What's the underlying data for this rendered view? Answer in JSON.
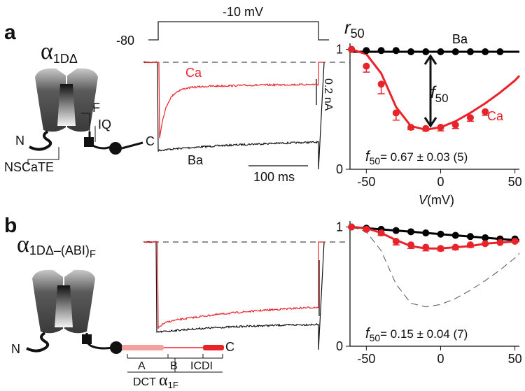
{
  "panel_a": {
    "label": "a",
    "protocol": {
      "step": "-10 mV",
      "hold": "-80"
    },
    "channel": {
      "symbol": "α",
      "subscript": "1DΔ"
    },
    "diagram": {
      "ef": "EF",
      "iq": "IQ",
      "n": "N",
      "c": "C",
      "nscate": "NSCaTE"
    },
    "traces": {
      "ca": "Ca",
      "ba": "Ba",
      "current_scale": "0.2 nA",
      "time_scale": "100 ms"
    }
  },
  "panel_b": {
    "label": "b",
    "channel": {
      "symbol": "α",
      "subscript": "1DΔ–(ABI)",
      "sub_subscript": "F"
    },
    "diagram": {
      "n": "N",
      "c": "C",
      "a": "A",
      "b": "B",
      "icdi": "ICDI",
      "dct": "DCT",
      "dct_symbol": "α",
      "dct_subscript": "1F"
    }
  },
  "chart_data": [
    {
      "type": "scatter",
      "y_label": {
        "symbol": "r",
        "subscript": "50"
      },
      "x_label": {
        "symbol": "V",
        "unit": "(mV)"
      },
      "annotation": {
        "symbol": "f",
        "subscript": "50"
      },
      "stat": {
        "symbol": "f",
        "subscript": "50",
        "text": "= 0.67 ± 0.03 (5)"
      },
      "xlim": [
        -61,
        53
      ],
      "xticks": [
        -50,
        0,
        50
      ],
      "ylim": [
        0,
        1.05
      ],
      "yticks": [
        0,
        1
      ],
      "x": [
        -60,
        -50,
        -40,
        -30,
        -20,
        -10,
        0,
        10,
        20,
        30,
        40
      ],
      "series": [
        {
          "name": "Ba",
          "color": "#000000",
          "values": [
            1.0,
            0.99,
            0.99,
            0.99,
            0.98,
            0.98,
            0.98,
            0.98,
            0.98,
            0.98,
            0.98
          ]
        },
        {
          "name": "Ca",
          "color": "#e8232a",
          "values": [
            1.0,
            0.86,
            0.71,
            0.47,
            0.35,
            0.34,
            0.35,
            0.37,
            0.43,
            0.48,
            null
          ],
          "errors": [
            0,
            0.05,
            0.08,
            0.06,
            0.02,
            0.02,
            0.03,
            0.03,
            0.03,
            0.03,
            null
          ]
        }
      ],
      "fit_x": [
        -60,
        -50,
        -40,
        -30,
        -20,
        -10,
        0,
        10,
        20,
        30,
        40,
        50,
        53
      ],
      "fits": [
        {
          "color": "#000000",
          "values": [
            0.98,
            0.98,
            0.98,
            0.98,
            0.98,
            0.98,
            0.98,
            0.98,
            0.98,
            0.98,
            0.98,
            0.98,
            0.98
          ]
        },
        {
          "color": "#e8232a",
          "values": [
            1.0,
            0.96,
            0.8,
            0.52,
            0.36,
            0.33,
            0.35,
            0.4,
            0.47,
            0.55,
            0.64,
            0.74,
            0.78
          ]
        }
      ]
    },
    {
      "type": "scatter",
      "stat": {
        "symbol": "f",
        "subscript": "50",
        "text": "= 0.15 ± 0.04 (7)"
      },
      "xlim": [
        -61,
        53
      ],
      "xticks": [
        -50,
        0,
        50
      ],
      "ylim": [
        0,
        1.05
      ],
      "yticks": [
        0,
        1
      ],
      "x": [
        -60,
        -50,
        -40,
        -30,
        -20,
        -10,
        0,
        10,
        20,
        30,
        40,
        50
      ],
      "series": [
        {
          "color": "#000000",
          "values": [
            1.0,
            0.99,
            0.98,
            0.97,
            0.96,
            0.95,
            0.94,
            0.93,
            0.92,
            0.91,
            0.9,
            0.9
          ]
        },
        {
          "color": "#e8232a",
          "values": [
            1.0,
            0.98,
            0.95,
            0.88,
            0.85,
            0.83,
            0.82,
            0.83,
            0.85,
            0.86,
            0.87,
            0.88
          ],
          "errors": [
            0,
            0,
            0.02,
            0.03,
            0.03,
            0.03,
            0.02,
            0.02,
            0.02,
            0,
            0,
            0
          ]
        }
      ],
      "fit_x": [
        -60,
        -50,
        -40,
        -30,
        -20,
        -10,
        0,
        10,
        20,
        30,
        40,
        50,
        53
      ],
      "fits": [
        {
          "color": "#000000",
          "values": [
            1.0,
            0.99,
            0.98,
            0.97,
            0.96,
            0.95,
            0.94,
            0.93,
            0.92,
            0.91,
            0.9,
            0.89,
            0.89
          ]
        },
        {
          "color": "#e8232a",
          "values": [
            1.0,
            0.99,
            0.95,
            0.89,
            0.84,
            0.82,
            0.82,
            0.83,
            0.84,
            0.86,
            0.87,
            0.88,
            0.88
          ]
        },
        {
          "color": "#555555",
          "dashed": true,
          "values": [
            1.0,
            0.96,
            0.8,
            0.52,
            0.36,
            0.33,
            0.35,
            0.4,
            0.47,
            0.55,
            0.64,
            0.74,
            0.78
          ]
        }
      ]
    }
  ]
}
